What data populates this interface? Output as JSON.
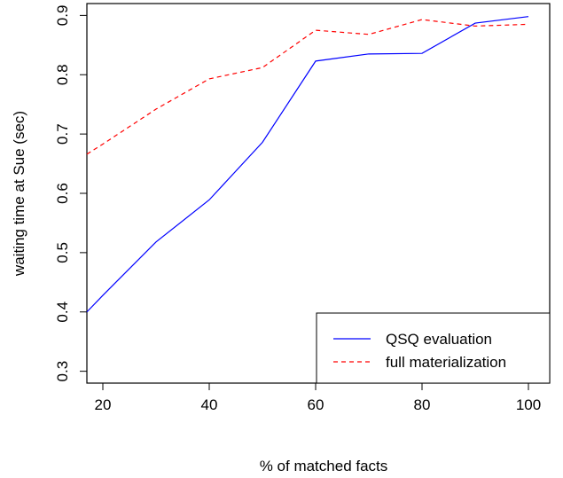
{
  "chart_data": {
    "type": "line",
    "title": "",
    "xlabel": "% of matched facts",
    "ylabel": "waiting time at Sue (sec)",
    "xlim": [
      17,
      104
    ],
    "ylim": [
      0.28,
      0.92
    ],
    "x_ticks": [
      20,
      40,
      60,
      80,
      100
    ],
    "y_ticks": [
      0.3,
      0.4,
      0.5,
      0.6,
      0.7,
      0.8,
      0.9
    ],
    "x_tick_labels": [
      "20",
      "40",
      "60",
      "80",
      "100"
    ],
    "y_tick_labels": [
      "0.3",
      "0.4",
      "0.5",
      "0.6",
      "0.7",
      "0.8",
      "0.9"
    ],
    "grid": false,
    "legend_position": "bottom-right",
    "series": [
      {
        "name": "QSQ evaluation",
        "color": "#0000ff",
        "dash": "solid",
        "x": [
          17,
          20,
          30,
          40,
          50,
          60,
          70,
          80,
          90,
          100
        ],
        "y": [
          0.4,
          0.428,
          0.518,
          0.589,
          0.686,
          0.823,
          0.835,
          0.836,
          0.887,
          0.898
        ]
      },
      {
        "name": "full materialization",
        "color": "#ff0000",
        "dash": "dashed",
        "x": [
          17,
          20,
          30,
          40,
          50,
          60,
          70,
          80,
          90,
          100
        ],
        "y": [
          0.666,
          0.683,
          0.742,
          0.793,
          0.812,
          0.875,
          0.868,
          0.893,
          0.882,
          0.885
        ]
      }
    ]
  }
}
